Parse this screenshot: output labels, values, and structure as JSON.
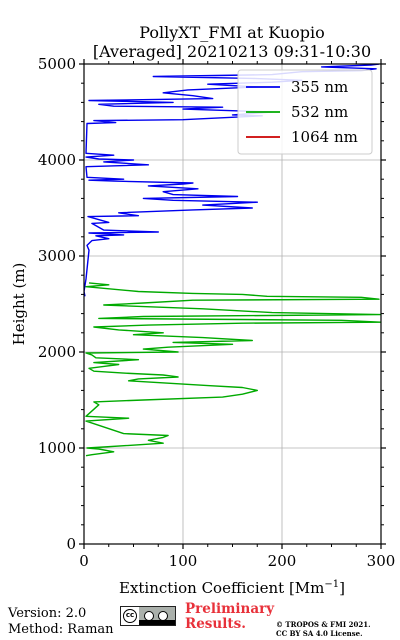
{
  "chart_data": {
    "type": "line",
    "title": "PollyXT_FMI at Kuopio",
    "subtitle": "[Averaged] 20210213 09:31-10:30",
    "xlabel": "Extinction Coefficient [Mm",
    "xlabel_sup": "−1",
    "xlabel_close": "]",
    "ylabel": "Height (m)",
    "xlim": [
      0,
      300
    ],
    "ylim": [
      0,
      5000
    ],
    "xticks": [
      0,
      100,
      200,
      300
    ],
    "yticks": [
      0,
      1000,
      2000,
      3000,
      4000,
      5000
    ],
    "xtick_labels": [
      "0",
      "100",
      "200",
      "300"
    ],
    "ytick_labels": [
      "0",
      "1000",
      "2000",
      "3000",
      "4000",
      "5000"
    ],
    "grid": true,
    "legend_position": "top-right",
    "series": [
      {
        "name": "355 nm",
        "color": "#0000ee",
        "points": [
          [
            1,
            2580
          ],
          [
            0,
            2630
          ],
          [
            2,
            2760
          ],
          [
            5,
            3060
          ],
          [
            3,
            3110
          ],
          [
            8,
            3160
          ],
          [
            25,
            3180
          ],
          [
            12,
            3210
          ],
          [
            40,
            3220
          ],
          [
            5,
            3240
          ],
          [
            75,
            3250
          ],
          [
            20,
            3270
          ],
          [
            8,
            3340
          ],
          [
            25,
            3350
          ],
          [
            4,
            3410
          ],
          [
            55,
            3420
          ],
          [
            35,
            3450
          ],
          [
            110,
            3480
          ],
          [
            170,
            3500
          ],
          [
            120,
            3530
          ],
          [
            175,
            3560
          ],
          [
            90,
            3580
          ],
          [
            60,
            3600
          ],
          [
            155,
            3620
          ],
          [
            90,
            3640
          ],
          [
            80,
            3670
          ],
          [
            115,
            3700
          ],
          [
            65,
            3730
          ],
          [
            100,
            3750
          ],
          [
            110,
            3760
          ],
          [
            30,
            3780
          ],
          [
            5,
            3790
          ],
          [
            40,
            3800
          ],
          [
            3,
            3820
          ],
          [
            2,
            3930
          ],
          [
            65,
            3950
          ],
          [
            20,
            3980
          ],
          [
            50,
            4000
          ],
          [
            15,
            4010
          ],
          [
            2,
            4030
          ],
          [
            30,
            4050
          ],
          [
            2,
            4070
          ],
          [
            3,
            4380
          ],
          [
            32,
            4390
          ],
          [
            10,
            4410
          ],
          [
            100,
            4420
          ],
          [
            180,
            4460
          ],
          [
            150,
            4470
          ],
          [
            190,
            4500
          ],
          [
            100,
            4530
          ],
          [
            140,
            4550
          ],
          [
            30,
            4560
          ],
          [
            15,
            4580
          ],
          [
            90,
            4600
          ],
          [
            5,
            4620
          ],
          [
            130,
            4640
          ],
          [
            110,
            4670
          ],
          [
            80,
            4700
          ],
          [
            105,
            4730
          ],
          [
            175,
            4760
          ],
          [
            125,
            4790
          ],
          [
            190,
            4810
          ],
          [
            220,
            4830
          ],
          [
            170,
            4850
          ],
          [
            70,
            4870
          ],
          [
            190,
            4890
          ],
          [
            220,
            4920
          ],
          [
            280,
            4930
          ],
          [
            295,
            4950
          ],
          [
            240,
            4970
          ],
          [
            290,
            4990
          ],
          [
            298,
            5000
          ]
        ]
      },
      {
        "name": "532 nm",
        "color": "#00aa00",
        "points": [
          [
            2,
            920
          ],
          [
            8,
            930
          ],
          [
            30,
            960
          ],
          [
            15,
            990
          ],
          [
            3,
            1000
          ],
          [
            20,
            1010
          ],
          [
            80,
            1050
          ],
          [
            65,
            1080
          ],
          [
            80,
            1110
          ],
          [
            85,
            1130
          ],
          [
            40,
            1150
          ],
          [
            2,
            1280
          ],
          [
            45,
            1310
          ],
          [
            2,
            1330
          ],
          [
            15,
            1450
          ],
          [
            10,
            1480
          ],
          [
            60,
            1500
          ],
          [
            140,
            1530
          ],
          [
            160,
            1560
          ],
          [
            175,
            1600
          ],
          [
            160,
            1630
          ],
          [
            125,
            1650
          ],
          [
            45,
            1700
          ],
          [
            55,
            1720
          ],
          [
            95,
            1740
          ],
          [
            80,
            1760
          ],
          [
            40,
            1780
          ],
          [
            10,
            1800
          ],
          [
            5,
            1830
          ],
          [
            20,
            1850
          ],
          [
            35,
            1870
          ],
          [
            10,
            1890
          ],
          [
            55,
            1920
          ],
          [
            12,
            1940
          ],
          [
            8,
            1970
          ],
          [
            2,
            1990
          ],
          [
            95,
            2000
          ],
          [
            60,
            2030
          ],
          [
            85,
            2050
          ],
          [
            150,
            2080
          ],
          [
            90,
            2100
          ],
          [
            170,
            2120
          ],
          [
            120,
            2150
          ],
          [
            50,
            2180
          ],
          [
            80,
            2200
          ],
          [
            35,
            2230
          ],
          [
            10,
            2260
          ],
          [
            65,
            2280
          ],
          [
            160,
            2300
          ],
          [
            300,
            2310
          ],
          [
            260,
            2330
          ],
          [
            15,
            2350
          ],
          [
            60,
            2370
          ],
          [
            300,
            2390
          ],
          [
            190,
            2410
          ],
          [
            120,
            2450
          ],
          [
            20,
            2490
          ],
          [
            60,
            2510
          ],
          [
            110,
            2540
          ],
          [
            298,
            2550
          ],
          [
            280,
            2570
          ],
          [
            185,
            2580
          ],
          [
            160,
            2600
          ],
          [
            110,
            2610
          ],
          [
            55,
            2630
          ],
          [
            2,
            2680
          ],
          [
            25,
            2700
          ],
          [
            5,
            2720
          ]
        ]
      },
      {
        "name": "1064 nm",
        "color": "#cc0000",
        "points": []
      }
    ]
  },
  "footer": {
    "version_line": "Version: 2.0",
    "method_line": "Method: Raman",
    "prelim_line1": "Preliminary",
    "prelim_line2": "Results.",
    "copyright_line1": "© TROPOS & FMI 2021.",
    "copyright_line2": "CC BY SA 4.0 License.",
    "license_badge_text": "cc"
  }
}
